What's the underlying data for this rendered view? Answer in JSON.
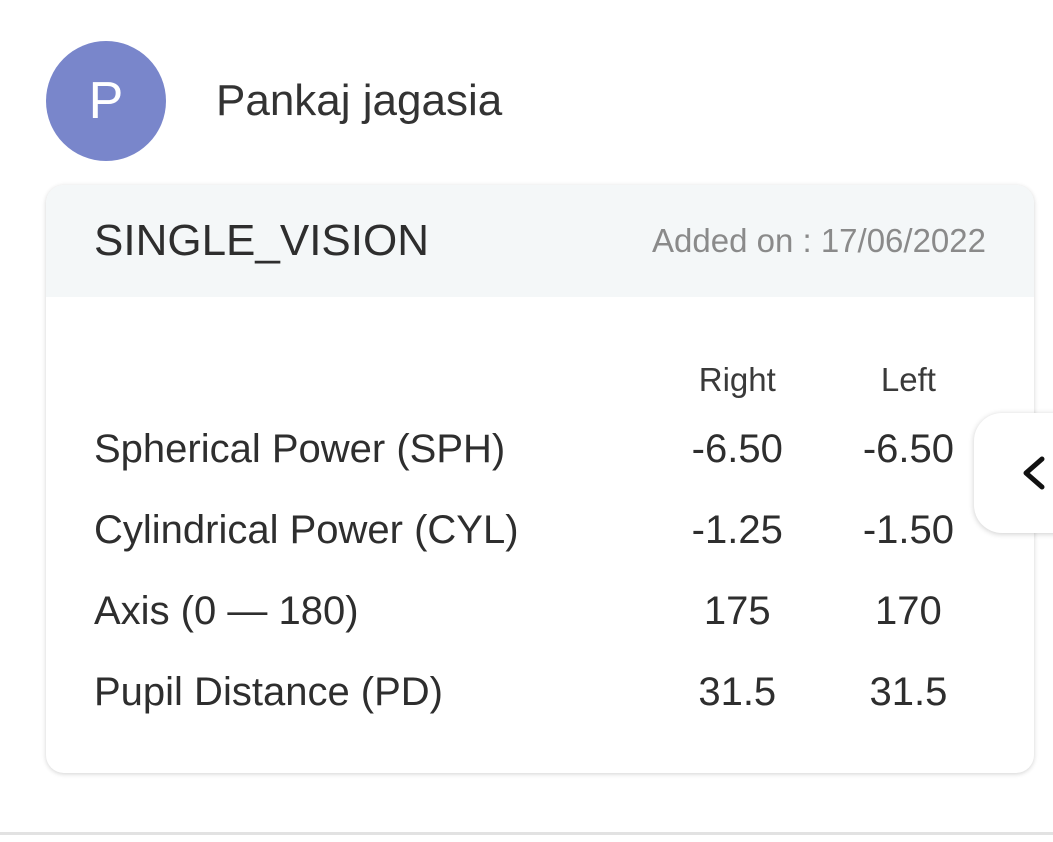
{
  "user": {
    "initial": "P",
    "name": "Pankaj jagasia",
    "avatar_color": "#7986cb"
  },
  "prescription": {
    "type": "SINGLE_VISION",
    "added_on": "Added on : 17/06/2022",
    "columns": [
      "Right",
      "Left"
    ],
    "rows": [
      {
        "label": "Spherical Power (SPH)",
        "right": "-6.50",
        "left": "-6.50"
      },
      {
        "label": "Cylindrical Power (CYL)",
        "right": "-1.25",
        "left": "-1.50"
      },
      {
        "label": "Axis (0 — 180)",
        "right": "175",
        "left": "170"
      },
      {
        "label": "Pupil Distance (PD)",
        "right": "31.5",
        "left": "31.5"
      }
    ]
  },
  "side_tab": {
    "icon": "chevron-left-icon"
  }
}
